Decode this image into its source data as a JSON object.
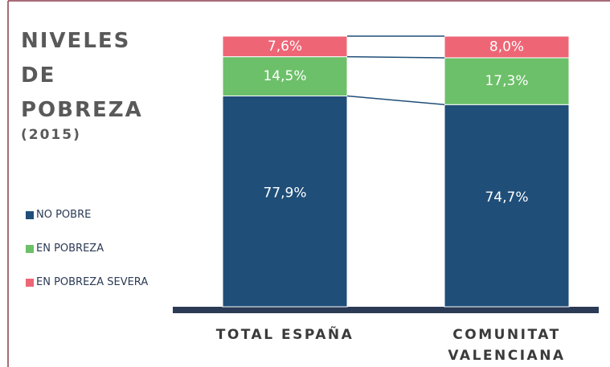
{
  "chart_data": {
    "type": "stacked_bar",
    "title": "NIVELES DE POBREZA",
    "subtitle": "(2015)",
    "categories": [
      "TOTAL ESPAÑA",
      "COMUNITAT VALENCIANA"
    ],
    "ylim": [
      0,
      100
    ],
    "series": [
      {
        "name": "NO POBRE",
        "color": "#1f4e79",
        "values": [
          77.9,
          74.7
        ],
        "value_labels": [
          "77,9%",
          "74,7%"
        ]
      },
      {
        "name": "EN POBREZA",
        "color": "#6cc069",
        "values": [
          14.5,
          17.3
        ],
        "value_labels": [
          "14,5%",
          "17,3%"
        ]
      },
      {
        "name": "EN POBREZA SEVERA",
        "color": "#ee6676",
        "values": [
          7.6,
          8.0
        ],
        "value_labels": [
          "7,6%",
          "8,0%"
        ]
      }
    ]
  }
}
